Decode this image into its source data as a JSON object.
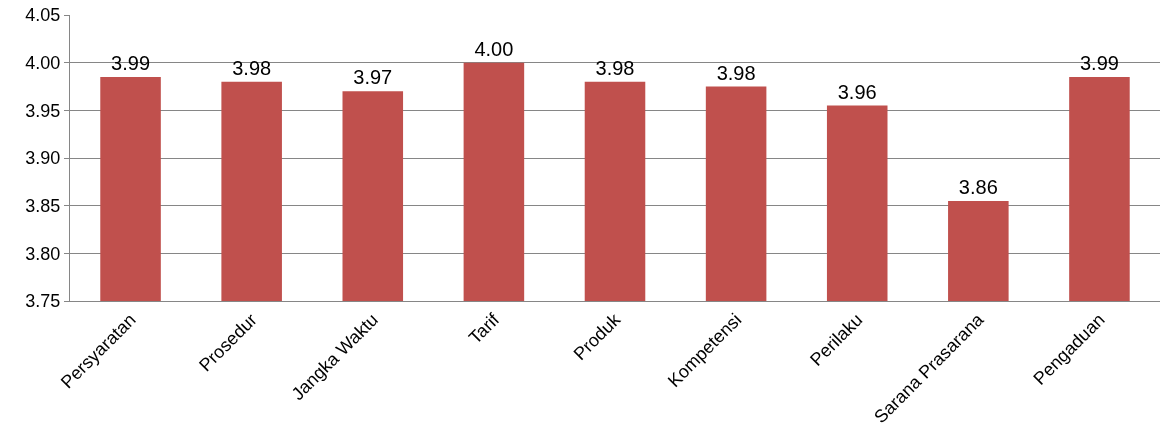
{
  "chart_data": {
    "type": "bar",
    "categories": [
      "Persyaratan",
      "Prosedur",
      "Jangka Waktu",
      "Tarif",
      "Produk",
      "Kompetensi",
      "Perilaku",
      "Sarana Prasarana",
      "Pengaduan"
    ],
    "values": [
      3.985,
      3.98,
      3.97,
      4.0,
      3.98,
      3.975,
      3.955,
      3.855,
      3.985
    ],
    "value_labels": [
      "3.99",
      "3.98",
      "3.97",
      "4.00",
      "3.98",
      "3.98",
      "3.96",
      "3.86",
      "3.99"
    ],
    "color": "#c0504d",
    "ylim": [
      3.75,
      4.05
    ],
    "yticks": [
      {
        "value": 3.75,
        "label": "3.75"
      },
      {
        "value": 3.8,
        "label": "3.80"
      },
      {
        "value": 3.85,
        "label": "3.85"
      },
      {
        "value": 3.9,
        "label": "3.90"
      },
      {
        "value": 3.95,
        "label": "3.95"
      },
      {
        "value": 4.0,
        "label": "4.00"
      },
      {
        "value": 4.05,
        "label": "4.05"
      }
    ],
    "grid": "y"
  }
}
